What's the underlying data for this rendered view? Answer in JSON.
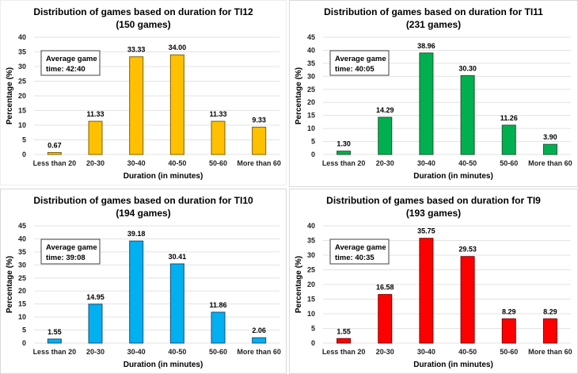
{
  "chart_data": [
    {
      "type": "bar",
      "title": "Distribution of games based on duration for TI12",
      "subtitle": "(150 games)",
      "xlabel": "Duration (in minutes)",
      "ylabel": "Percentage (%)",
      "categories": [
        "Less than 20",
        "20-30",
        "30-40",
        "40-50",
        "50-60",
        "More than 60"
      ],
      "values": [
        0.67,
        11.33,
        33.33,
        34.0,
        11.33,
        9.33
      ],
      "data_labels": [
        "0.67",
        "11.33",
        "33.33",
        "34.00",
        "11.33",
        "9.33"
      ],
      "ylim": [
        0,
        40
      ],
      "yticks": [
        0,
        5,
        10,
        15,
        20,
        25,
        30,
        35,
        40
      ],
      "grid": true,
      "color": "#FFC000",
      "border_color": "#7F6000",
      "annotation": {
        "line1": "Average game",
        "line2": "time: 42:40",
        "placement": "top-left"
      }
    },
    {
      "type": "bar",
      "title": "Distribution of games based on duration for TI11",
      "subtitle": "(231 games)",
      "xlabel": "Duration (in minutes)",
      "ylabel": "Percentage (%)",
      "categories": [
        "Less than 20",
        "20-30",
        "30-40",
        "40-50",
        "50-60",
        "More than 60"
      ],
      "values": [
        1.3,
        14.29,
        38.96,
        30.3,
        11.26,
        3.9
      ],
      "data_labels": [
        "1.30",
        "14.29",
        "38.96",
        "30.30",
        "11.26",
        "3.90"
      ],
      "ylim": [
        0,
        45
      ],
      "yticks": [
        0,
        5,
        10,
        15,
        20,
        25,
        30,
        35,
        40,
        45
      ],
      "grid": true,
      "color": "#00B050",
      "border_color": "#1E5631",
      "annotation": {
        "line1": "Average game",
        "line2": "time: 40:05",
        "placement": "top-left"
      }
    },
    {
      "type": "bar",
      "title": "Distribution of games based on duration for TI10",
      "subtitle": "(194 games)",
      "xlabel": "Duration (in minutes)",
      "ylabel": "Percentage (%)",
      "categories": [
        "Less than 20",
        "20-30",
        "30-40",
        "40-50",
        "50-60",
        "More than 60"
      ],
      "values": [
        1.55,
        14.95,
        39.18,
        30.41,
        11.86,
        2.06
      ],
      "data_labels": [
        "1.55",
        "14.95",
        "39.18",
        "30.41",
        "11.86",
        "2.06"
      ],
      "ylim": [
        0,
        45
      ],
      "yticks": [
        0,
        5,
        10,
        15,
        20,
        25,
        30,
        35,
        40,
        45
      ],
      "grid": true,
      "color": "#00B0F0",
      "border_color": "#1F4E79",
      "annotation": {
        "line1": "Average game",
        "line2": "time: 39:08",
        "placement": "top-left"
      }
    },
    {
      "type": "bar",
      "title": "Distribution of games based on duration for TI9",
      "subtitle": "(193 games)",
      "xlabel": "Duration (in minutes)",
      "ylabel": "Percentage (%)",
      "categories": [
        "Less than 20",
        "20-30",
        "30-40",
        "40-50",
        "50-60",
        "More than 60"
      ],
      "values": [
        1.55,
        16.58,
        35.75,
        29.53,
        8.29,
        8.29
      ],
      "data_labels": [
        "1.55",
        "16.58",
        "35.75",
        "29.53",
        "8.29",
        "8.29"
      ],
      "ylim": [
        0,
        40
      ],
      "yticks": [
        0,
        5,
        10,
        15,
        20,
        25,
        30,
        35,
        40
      ],
      "grid": true,
      "color": "#FF0000",
      "border_color": "#7F0000",
      "annotation": {
        "line1": "Average game",
        "line2": "time: 40:35",
        "placement": "top-left"
      }
    }
  ]
}
